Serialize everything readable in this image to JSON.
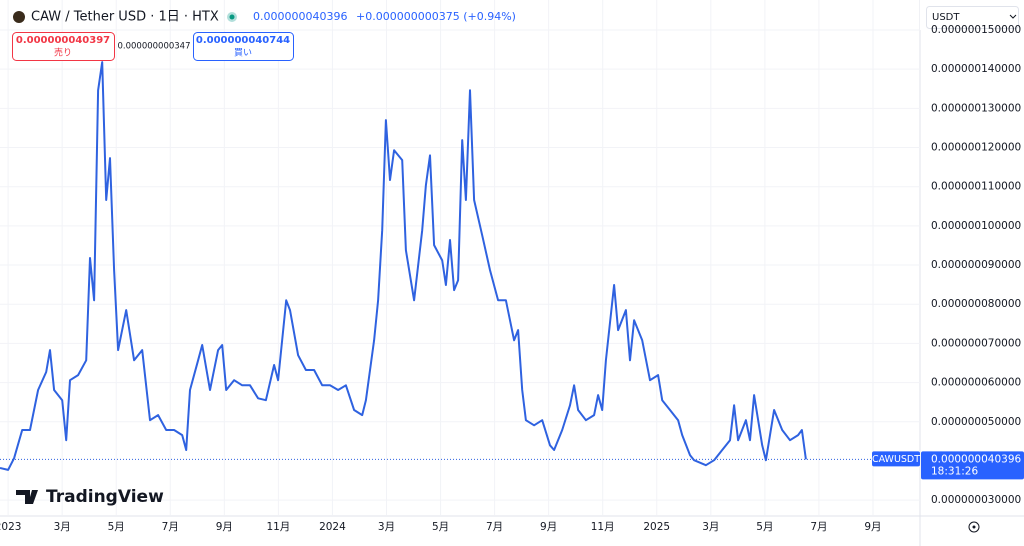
{
  "header": {
    "symbol": "CAW / Tether USD · 1日 · HTX",
    "price": "0.000000040396",
    "change": "+0.000000000375 (+0.94%)"
  },
  "trade": {
    "sell_price": "0.000000040397",
    "sell_label": "売り",
    "spread": "0.000000000347",
    "buy_price": "0.000000040744",
    "buy_label": "買い"
  },
  "currency": "USDT",
  "logo": "TradingView",
  "chart_data": {
    "type": "line",
    "x": [
      -0.3,
      0.0,
      0.22,
      0.52,
      0.81,
      1.11,
      1.41,
      1.55,
      1.7,
      2.0,
      2.15,
      2.29,
      2.59,
      2.89,
      3.03,
      3.18,
      3.33,
      3.48,
      3.63,
      3.77,
      3.92,
      4.07,
      4.37,
      4.66,
      4.96,
      5.25,
      5.55,
      5.85,
      6.14,
      6.44,
      6.59,
      6.73,
      7.03,
      7.18,
      7.47,
      7.77,
      7.92,
      8.07,
      8.36,
      8.66,
      8.95,
      9.25,
      9.54,
      9.84,
      9.99,
      10.29,
      10.43,
      10.73,
      11.02,
      11.32,
      11.62,
      11.91,
      12.21,
      12.5,
      12.8,
      13.1,
      13.24,
      13.54,
      13.69,
      13.84,
      13.98,
      14.13,
      14.28,
      14.58,
      14.72,
      15.02,
      15.32,
      15.46,
      15.61,
      15.76,
      16.06,
      16.2,
      16.35,
      16.5,
      16.65,
      16.8,
      16.94,
      17.09,
      17.24,
      17.54,
      17.83,
      18.13,
      18.42,
      18.72,
      18.87,
      19.02,
      19.16,
      19.46,
      19.76,
      20.05,
      20.2,
      20.5,
      20.79,
      20.94,
      21.09,
      21.38,
      21.68,
      21.83,
      21.98,
      22.12,
      22.42,
      22.57,
      22.86,
      23.01,
      23.16,
      23.46,
      23.75,
      24.05,
      24.2,
      24.49,
      24.79,
      24.94,
      25.23,
      25.38,
      25.82,
      26.12,
      26.42,
      26.71,
      26.86,
      27.01,
      27.3,
      27.45,
      27.6,
      27.9,
      28.04,
      28.34,
      28.64,
      28.93,
      29.23,
      29.37,
      29.52
    ],
    "series": [
      {
        "name": "CAWUSDT",
        "color": "#2f62e0",
        "values": [
          3.82e-08,
          3.77e-08,
          4.07e-08,
          4.79e-08,
          4.79e-08,
          5.81e-08,
          6.27e-08,
          6.83e-08,
          5.81e-08,
          5.55e-08,
          4.53e-08,
          6.06e-08,
          6.19e-08,
          6.57e-08,
          9.18e-08,
          8.1e-08,
          1.346e-07,
          1.418e-07,
          1.066e-07,
          1.173e-07,
          8.87e-08,
          6.83e-08,
          7.85e-08,
          6.57e-08,
          6.83e-08,
          5.04e-08,
          5.17e-08,
          4.79e-08,
          4.79e-08,
          4.66e-08,
          4.28e-08,
          5.81e-08,
          6.57e-08,
          6.96e-08,
          5.81e-08,
          6.83e-08,
          6.96e-08,
          5.81e-08,
          6.06e-08,
          5.93e-08,
          5.93e-08,
          5.6e-08,
          5.55e-08,
          6.45e-08,
          6.06e-08,
          8.1e-08,
          7.85e-08,
          6.7e-08,
          6.32e-08,
          6.32e-08,
          5.93e-08,
          5.93e-08,
          5.81e-08,
          5.93e-08,
          5.3e-08,
          5.17e-08,
          5.55e-08,
          7.08e-08,
          8.1e-08,
          9.89e-08,
          1.27e-07,
          1.117e-07,
          1.193e-07,
          1.168e-07,
          9.38e-08,
          8.1e-08,
          9.89e-08,
          1.104e-07,
          1.18e-07,
          9.51e-08,
          9.12e-08,
          8.49e-08,
          9.64e-08,
          8.36e-08,
          8.61e-08,
          1.219e-07,
          1.066e-07,
          1.346e-07,
          1.066e-07,
          9.76e-08,
          8.87e-08,
          8.1e-08,
          8.1e-08,
          7.08e-08,
          7.34e-08,
          5.81e-08,
          5.04e-08,
          4.91e-08,
          5.04e-08,
          4.4e-08,
          4.28e-08,
          4.79e-08,
          5.42e-08,
          5.93e-08,
          5.3e-08,
          5.04e-08,
          5.17e-08,
          5.68e-08,
          5.3e-08,
          6.57e-08,
          8.49e-08,
          7.34e-08,
          7.85e-08,
          6.57e-08,
          7.59e-08,
          7.08e-08,
          6.06e-08,
          6.19e-08,
          5.55e-08,
          5.3e-08,
          5.04e-08,
          4.66e-08,
          4.15e-08,
          4.02e-08,
          3.89e-08,
          4.02e-08,
          4.28e-08,
          4.53e-08,
          5.42e-08,
          4.53e-08,
          5.04e-08,
          4.53e-08,
          5.68e-08,
          4.4e-08,
          4.02e-08,
          5.3e-08,
          4.79e-08,
          4.53e-08,
          4.66e-08,
          4.79e-08,
          4.0396e-08
        ]
      }
    ],
    "last_value_label": "0.000000040396",
    "countdown": "18:31:26",
    "xlim": [
      -0.3,
      33.74
    ],
    "xticks": [
      {
        "value": 0,
        "label": "2023"
      },
      {
        "value": 2,
        "label": "3月"
      },
      {
        "value": 4,
        "label": "5月"
      },
      {
        "value": 6,
        "label": "7月"
      },
      {
        "value": 8,
        "label": "9月"
      },
      {
        "value": 10,
        "label": "11月"
      },
      {
        "value": 12,
        "label": "2024"
      },
      {
        "value": 14,
        "label": "3月"
      },
      {
        "value": 16,
        "label": "5月"
      },
      {
        "value": 18,
        "label": "7月"
      },
      {
        "value": 20,
        "label": "9月"
      },
      {
        "value": 22,
        "label": "11月"
      },
      {
        "value": 24,
        "label": "2025"
      },
      {
        "value": 26,
        "label": "3月"
      },
      {
        "value": 28,
        "label": "5月"
      },
      {
        "value": 30,
        "label": "7月"
      },
      {
        "value": 32,
        "label": "9月"
      }
    ],
    "ylim": [
      2.62e-08,
      1.5e-07
    ],
    "yticks": [
      {
        "value": 3e-08,
        "label": "0.000000030000"
      },
      {
        "value": 5e-08,
        "label": "0.000000050000"
      },
      {
        "value": 6e-08,
        "label": "0.000000060000"
      },
      {
        "value": 7e-08,
        "label": "0.000000070000"
      },
      {
        "value": 8e-08,
        "label": "0.000000080000"
      },
      {
        "value": 9e-08,
        "label": "0.000000090000"
      },
      {
        "value": 1e-07,
        "label": "0.000000100000"
      },
      {
        "value": 1.1e-07,
        "label": "0.000000110000"
      },
      {
        "value": 1.2e-07,
        "label": "0.000000120000"
      },
      {
        "value": 1.3e-07,
        "label": "0.000000130000"
      },
      {
        "value": 1.4e-07,
        "label": "0.000000140000"
      },
      {
        "value": 1.5e-07,
        "label": "0.000000150000"
      }
    ],
    "grid": true
  }
}
